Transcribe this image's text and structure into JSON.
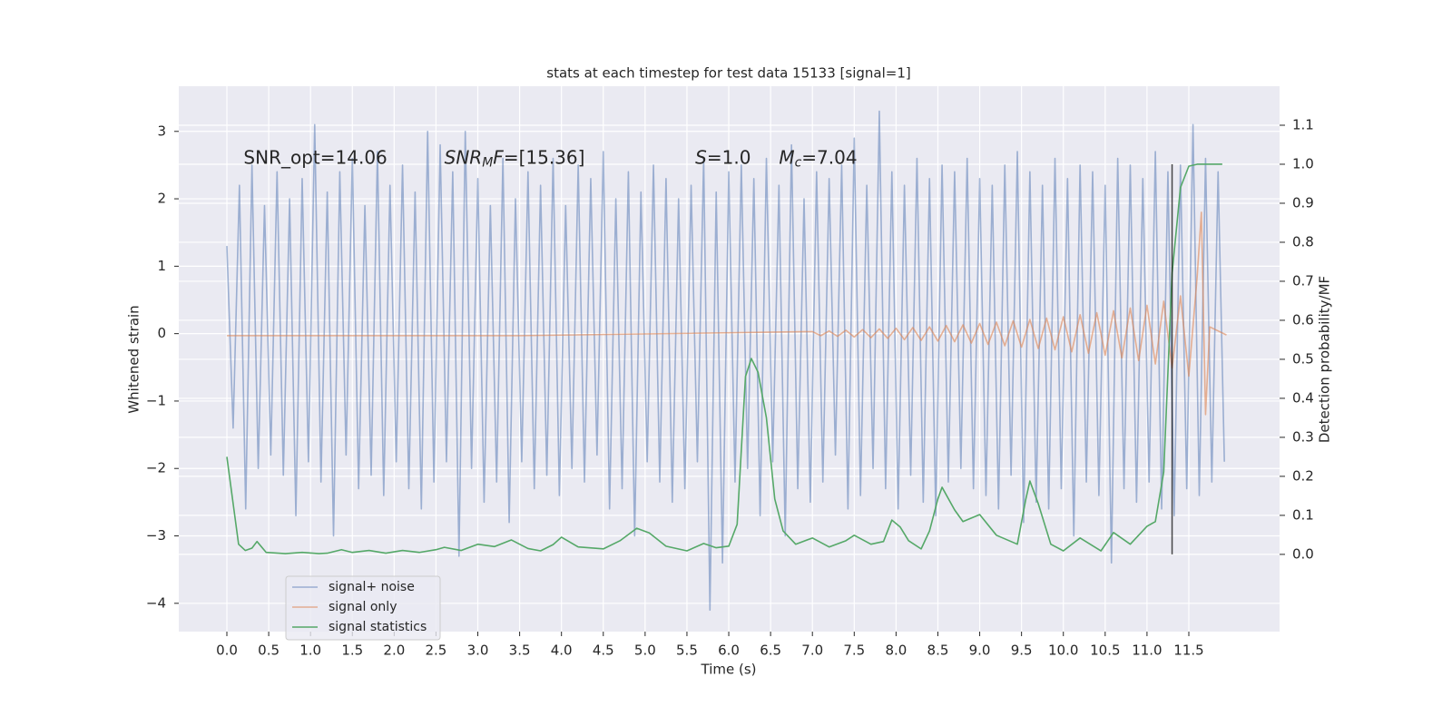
{
  "chart_data": {
    "type": "line",
    "title": "stats at each timestep for test data 15133 [signal=1]",
    "xlabel": "Time (s)",
    "ylabel": "Whitened strain",
    "y2label": "Detection probability/MF",
    "xlim": [
      -0.575,
      12.585
    ],
    "ylim": [
      -4.42,
      3.67
    ],
    "y2lim": [
      -0.198,
      1.2
    ],
    "xticks": [
      {
        "value": 0,
        "label": "0.0"
      },
      0.5,
      {
        "value": 1,
        "label": "1.0"
      },
      1.5,
      {
        "value": 2,
        "label": "2.0"
      },
      2.5,
      {
        "value": 3,
        "label": "3.0"
      },
      3.5,
      {
        "value": 4,
        "label": "4.0"
      },
      4.5,
      {
        "value": 5,
        "label": "5.0"
      },
      5.5,
      {
        "value": 6,
        "label": "6.0"
      },
      6.5,
      {
        "value": 7,
        "label": "7.0"
      },
      7.5,
      {
        "value": 8,
        "label": "8.0"
      },
      8.5,
      {
        "value": 9,
        "label": "9.0"
      },
      9.5,
      {
        "value": 10,
        "label": "10.0"
      },
      10.5,
      {
        "value": 11,
        "label": "11.0"
      },
      11.5
    ],
    "yticks": [
      {
        "value": -4,
        "label": "−4"
      },
      {
        "value": -3,
        "label": "−3"
      },
      {
        "value": -2,
        "label": "−2"
      },
      {
        "value": -1,
        "label": "−1"
      },
      0,
      1,
      2,
      3
    ],
    "y2ticks": [
      {
        "value": 0,
        "label": "0.0"
      },
      0.1,
      0.2,
      0.3,
      0.4,
      0.5,
      0.6,
      0.7,
      0.8,
      0.9,
      {
        "value": 1,
        "label": "1.0"
      },
      1.1
    ],
    "grid": true,
    "series": [
      {
        "name": "signal+ noise",
        "color": "#4c72b0",
        "alpha": 0.5,
        "x": [
          0,
          0.075,
          0.15,
          0.225,
          0.3,
          0.375,
          0.45,
          0.525,
          0.6,
          0.675,
          0.75,
          0.825,
          0.9,
          0.975,
          1.05,
          1.125,
          1.2,
          1.275,
          1.35,
          1.425,
          1.5,
          1.575,
          1.65,
          1.725,
          1.8,
          1.875,
          1.95,
          2.025,
          2.1,
          2.175,
          2.25,
          2.325,
          2.4,
          2.475,
          2.55,
          2.625,
          2.7,
          2.775,
          2.85,
          2.925,
          3,
          3.075,
          3.15,
          3.225,
          3.3,
          3.375,
          3.45,
          3.525,
          3.6,
          3.675,
          3.75,
          3.825,
          3.9,
          3.975,
          4.05,
          4.125,
          4.2,
          4.275,
          4.35,
          4.425,
          4.5,
          4.575,
          4.65,
          4.725,
          4.8,
          4.875,
          4.95,
          5.025,
          5.1,
          5.175,
          5.25,
          5.325,
          5.4,
          5.475,
          5.55,
          5.625,
          5.7,
          5.775,
          5.85,
          5.925,
          6,
          6.075,
          6.15,
          6.225,
          6.3,
          6.375,
          6.45,
          6.525,
          6.6,
          6.675,
          6.75,
          6.825,
          6.9,
          6.975,
          7.05,
          7.125,
          7.2,
          7.275,
          7.35,
          7.425,
          7.5,
          7.575,
          7.65,
          7.725,
          7.8,
          7.875,
          7.95,
          8.025,
          8.1,
          8.175,
          8.25,
          8.325,
          8.4,
          8.475,
          8.55,
          8.625,
          8.7,
          8.775,
          8.85,
          8.925,
          9,
          9.075,
          9.15,
          9.225,
          9.3,
          9.375,
          9.45,
          9.525,
          9.6,
          9.675,
          9.75,
          9.825,
          9.9,
          9.975,
          10.05,
          10.125,
          10.2,
          10.275,
          10.35,
          10.425,
          10.5,
          10.575,
          10.65,
          10.725,
          10.8,
          10.875,
          10.95,
          11.025,
          11.1,
          11.175,
          11.25,
          11.325,
          11.4,
          11.475,
          11.55,
          11.625,
          11.7,
          11.775,
          11.85,
          11.925
        ],
        "values": [
          1.3,
          -1.4,
          2.2,
          -2.6,
          2.5,
          -2.0,
          1.9,
          -1.8,
          2.4,
          -2.1,
          2.0,
          -2.7,
          2.3,
          -1.9,
          3.1,
          -2.2,
          2.1,
          -3.0,
          2.4,
          -1.8,
          2.6,
          -2.3,
          1.9,
          -2.1,
          2.7,
          -2.4,
          2.2,
          -1.9,
          2.5,
          -2.3,
          2.1,
          -2.6,
          3.0,
          -2.2,
          2.8,
          -1.9,
          2.4,
          -3.3,
          3.0,
          -2.0,
          2.3,
          -2.5,
          1.9,
          -2.2,
          2.6,
          -2.8,
          2.0,
          -1.9,
          2.4,
          -2.3,
          2.2,
          -2.1,
          2.6,
          -2.4,
          1.9,
          -2.0,
          2.5,
          -2.2,
          2.3,
          -1.8,
          2.7,
          -2.6,
          2.0,
          -2.3,
          2.4,
          -3.0,
          2.1,
          -1.9,
          2.5,
          -2.2,
          2.3,
          -2.5,
          2.0,
          -2.3,
          2.2,
          -1.9,
          2.6,
          -4.1,
          2.1,
          -3.4,
          2.4,
          -2.2,
          2.5,
          -2.0,
          2.3,
          -2.7,
          2.6,
          -1.9,
          2.2,
          -3.0,
          2.8,
          -2.3,
          2.0,
          -2.5,
          2.4,
          -2.2,
          2.3,
          -1.8,
          2.5,
          -2.6,
          2.9,
          -2.4,
          2.2,
          -2.0,
          3.3,
          -2.3,
          2.4,
          -2.6,
          2.2,
          -2.1,
          2.6,
          -2.5,
          2.3,
          -2.7,
          2.5,
          -2.2,
          2.4,
          -2.0,
          2.6,
          -2.3,
          2.3,
          -2.4,
          2.2,
          -2.6,
          2.5,
          -2.1,
          2.7,
          -2.8,
          2.4,
          -2.5,
          2.2,
          -2.6,
          2.6,
          -2.3,
          2.3,
          -3.0,
          2.5,
          -2.2,
          2.4,
          -2.4,
          2.2,
          -3.4,
          2.6,
          -2.3,
          2.5,
          -2.5,
          2.3,
          -2.2,
          2.7,
          -2.6,
          2.4,
          -2.7,
          2.5,
          -2.3,
          3.1,
          -2.4,
          2.6,
          -2.2,
          2.4,
          -1.9
        ]
      },
      {
        "name": "signal only",
        "color": "#dd8452",
        "alpha": 0.6,
        "x": [
          0,
          3.5,
          7.0,
          7.1,
          7.2,
          7.3,
          7.4,
          7.5,
          7.6,
          7.7,
          7.8,
          7.9,
          8.0,
          8.1,
          8.2,
          8.3,
          8.4,
          8.5,
          8.6,
          8.7,
          8.8,
          8.9,
          9.0,
          9.1,
          9.2,
          9.3,
          9.4,
          9.5,
          9.6,
          9.7,
          9.8,
          9.9,
          10.0,
          10.1,
          10.2,
          10.3,
          10.4,
          10.5,
          10.6,
          10.7,
          10.8,
          10.9,
          11.0,
          11.1,
          11.2,
          11.3,
          11.4,
          11.5,
          11.6,
          11.65,
          11.7,
          11.75,
          11.95
        ],
        "values": [
          -0.03,
          -0.03,
          0.03,
          -0.03,
          0.04,
          -0.04,
          0.05,
          -0.05,
          0.06,
          -0.06,
          0.07,
          -0.07,
          0.08,
          -0.09,
          0.09,
          -0.1,
          0.1,
          -0.11,
          0.12,
          -0.12,
          0.13,
          -0.14,
          0.15,
          -0.16,
          0.17,
          -0.18,
          0.19,
          -0.2,
          0.21,
          -0.22,
          0.23,
          -0.24,
          0.25,
          -0.27,
          0.28,
          -0.29,
          0.31,
          -0.32,
          0.34,
          -0.36,
          0.38,
          -0.4,
          0.42,
          -0.45,
          0.48,
          -0.51,
          0.56,
          -0.63,
          0.85,
          1.8,
          -1.2,
          0.1,
          -0.02
        ]
      },
      {
        "name": "signal statistics",
        "color": "#55a868",
        "alpha": 1,
        "axis": "y2",
        "x": [
          0,
          0.14,
          0.22,
          0.3,
          0.36,
          0.47,
          0.7,
          0.9,
          1.1,
          1.2,
          1.37,
          1.5,
          1.7,
          1.9,
          2.1,
          2.3,
          2.5,
          2.6,
          2.8,
          3.0,
          3.2,
          3.4,
          3.6,
          3.75,
          3.9,
          4.0,
          4.2,
          4.5,
          4.7,
          4.9,
          5.05,
          5.25,
          5.5,
          5.7,
          5.85,
          6.0,
          6.1,
          6.2,
          6.27,
          6.35,
          6.45,
          6.55,
          6.65,
          6.8,
          7.0,
          7.2,
          7.4,
          7.5,
          7.7,
          7.85,
          7.95,
          8.05,
          8.15,
          8.3,
          8.4,
          8.5,
          8.55,
          8.7,
          8.8,
          9.0,
          9.2,
          9.45,
          9.55,
          9.6,
          9.7,
          9.85,
          10.0,
          10.2,
          10.45,
          10.6,
          10.8,
          11.0,
          11.1,
          11.2,
          11.3,
          11.4,
          11.5,
          11.6,
          11.9
        ],
        "values": [
          0.25,
          0.026,
          0.01,
          0.016,
          0.033,
          0.005,
          0.002,
          0.005,
          0.002,
          0.003,
          0.012,
          0.005,
          0.01,
          0.003,
          0.01,
          0.005,
          0.012,
          0.018,
          0.01,
          0.026,
          0.02,
          0.037,
          0.015,
          0.009,
          0.025,
          0.044,
          0.019,
          0.014,
          0.035,
          0.067,
          0.055,
          0.021,
          0.009,
          0.028,
          0.017,
          0.021,
          0.077,
          0.456,
          0.502,
          0.467,
          0.35,
          0.142,
          0.06,
          0.026,
          0.042,
          0.019,
          0.035,
          0.049,
          0.026,
          0.033,
          0.088,
          0.07,
          0.035,
          0.014,
          0.06,
          0.142,
          0.172,
          0.114,
          0.084,
          0.102,
          0.049,
          0.026,
          0.14,
          0.188,
          0.13,
          0.026,
          0.009,
          0.042,
          0.009,
          0.056,
          0.026,
          0.072,
          0.084,
          0.211,
          0.72,
          0.94,
          0.995,
          1.0,
          1.0
        ]
      }
    ],
    "vline": {
      "x": 11.3,
      "ymin": 0,
      "ymax": 1,
      "axis": "y2",
      "color": "#000000",
      "alpha": 0.7
    },
    "annotations": [
      {
        "x": 0.2,
        "y": 2.6,
        "parts": [
          {
            "text": "SNR_opt=14.06"
          }
        ]
      },
      {
        "x": 2.6,
        "y": 2.6,
        "parts": [
          {
            "text": "SNR",
            "italic": true
          },
          {
            "text": "M",
            "italic": true,
            "sub": true
          },
          {
            "text": "F",
            "italic": true
          },
          {
            "text": "=[15.36]"
          }
        ]
      },
      {
        "x": 5.6,
        "y": 2.6,
        "parts": [
          {
            "text": "S",
            "italic": true
          },
          {
            "text": "=1.0"
          }
        ]
      },
      {
        "x": 6.6,
        "y": 2.6,
        "parts": [
          {
            "text": "M",
            "italic": true
          },
          {
            "text": "c",
            "italic": true,
            "sub": true
          },
          {
            "text": "=7.04"
          }
        ]
      }
    ]
  }
}
